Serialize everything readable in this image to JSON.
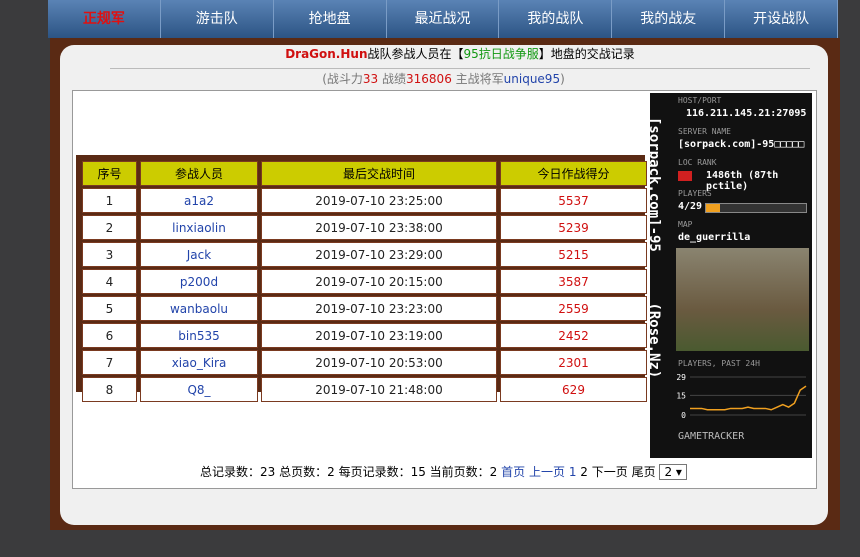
{
  "nav": [
    "正规军",
    "游击队",
    "抢地盘",
    "最近战况",
    "我的战队",
    "我的战友",
    "开设战队"
  ],
  "header": {
    "team": "DraGon.Hun",
    "text1": "战队参战人员在【",
    "server": "95抗日战争服",
    "text2": "】地盘的交战记录"
  },
  "stats": {
    "open": "(战斗力",
    "power": "33",
    "label_record": " 战绩",
    "record": "316806",
    "label_general": " 主战将军",
    "general": "unique95",
    "close": ")"
  },
  "table": {
    "headers": [
      "序号",
      "参战人员",
      "最后交战时间",
      "今日作战得分"
    ],
    "rows": [
      [
        "1",
        "a1a2",
        "2019-07-10 23:25:00",
        "5537"
      ],
      [
        "2",
        "linxiaolin",
        "2019-07-10 23:38:00",
        "5239"
      ],
      [
        "3",
        "Jack",
        "2019-07-10 23:29:00",
        "5215"
      ],
      [
        "4",
        "p200d",
        "2019-07-10 20:15:00",
        "3587"
      ],
      [
        "5",
        "wanbaolu",
        "2019-07-10 23:23:00",
        "2559"
      ],
      [
        "6",
        "bin535",
        "2019-07-10 23:19:00",
        "2452"
      ],
      [
        "7",
        "xiao_Kira",
        "2019-07-10 20:53:00",
        "2301"
      ],
      [
        "8",
        "Q8_",
        "2019-07-10 21:48:00",
        "629"
      ]
    ]
  },
  "pagination": {
    "summary": "总记录数：23 总页数：2 每页记录数：15 当前页数：2",
    "first": "首页",
    "prev": "上一页",
    "page1": "1",
    "page2": "2",
    "next": "下一页",
    "last": "尾页",
    "select": "2"
  },
  "widget": {
    "side_title": "[sorpack.com]-95",
    "side_sub": "(Rose.Nz)",
    "host_label": "HOST/PORT",
    "host": "116.211.145.21:27095",
    "name_label": "SERVER NAME",
    "name": "[sorpack.com]-95□□□□□",
    "rank_label": "LOC   RANK",
    "rank": "1486th (87th pctile)",
    "players_label": "PLAYERS",
    "players": "4/29",
    "map_label": "MAP",
    "map": "de_guerrilla",
    "history_label": "PLAYERS, PAST 24H",
    "yticks": [
      29,
      15,
      0
    ],
    "history": [
      5,
      5,
      5,
      4,
      4,
      4,
      4,
      5,
      5,
      5,
      6,
      5,
      5,
      5,
      4,
      6,
      8,
      6,
      9,
      19,
      22
    ],
    "brand": "GAMETRACKER"
  }
}
